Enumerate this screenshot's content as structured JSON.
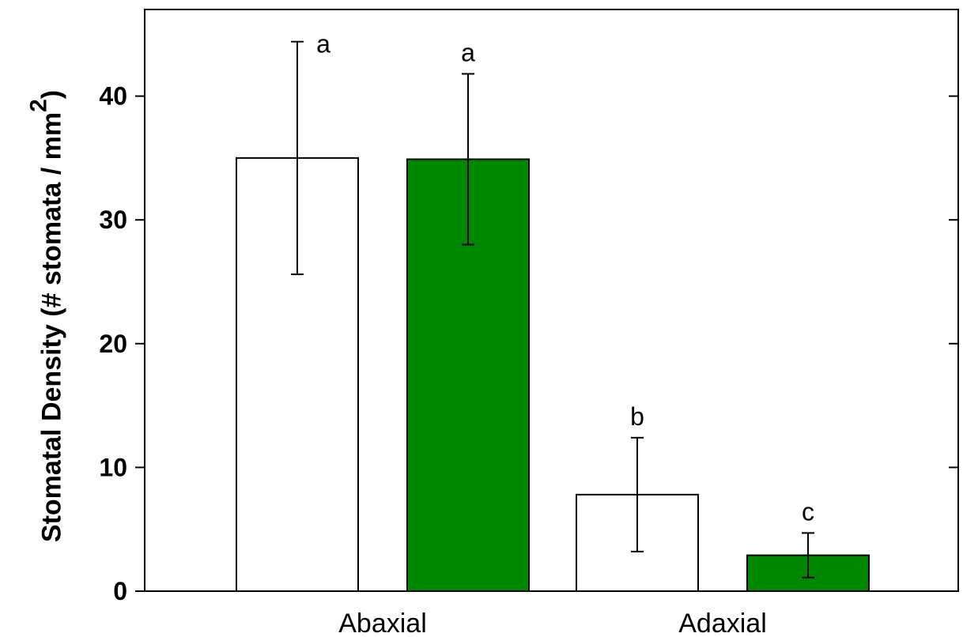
{
  "chart_data": {
    "type": "bar",
    "categories": [
      "Abaxial",
      "Adaxial"
    ],
    "ylabel_main": "Stomatal Density (# stomata / mm",
    "ylabel_sup": "2",
    "ylabel_close": ")",
    "ylim": [
      0,
      47
    ],
    "yticks": [
      0,
      10,
      20,
      30,
      40
    ],
    "grid": false,
    "colors": [
      "#ffffff",
      "#008800"
    ],
    "series": [
      {
        "values": [
          35.0,
          7.8
        ],
        "errors": [
          9.4,
          4.6
        ],
        "letters": [
          "a",
          "b"
        ]
      },
      {
        "values": [
          34.9,
          2.9
        ],
        "errors": [
          6.9,
          1.8
        ],
        "letters": [
          "a",
          "c"
        ]
      }
    ]
  }
}
